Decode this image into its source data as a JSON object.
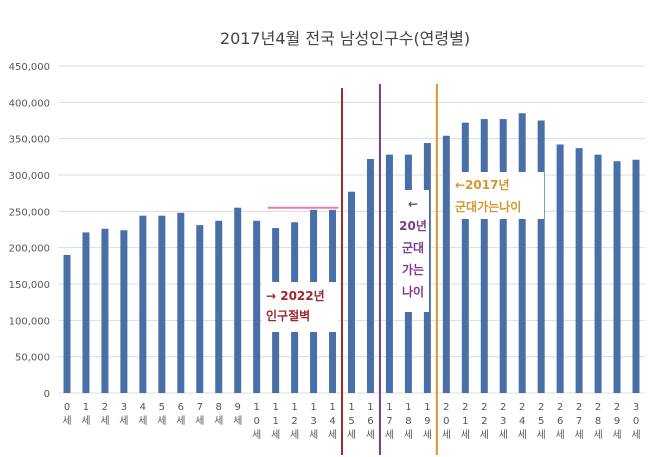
{
  "chart_data": {
    "type": "bar",
    "title": "2017년4월 전국 남성인구수(연령별)",
    "xlabel": "",
    "ylabel": "",
    "ylim": [
      0,
      450000
    ],
    "yticks": [
      "0",
      "50,000",
      "100,000",
      "150,000",
      "200,000",
      "250,000",
      "300,000",
      "350,000",
      "400,000",
      "450,000"
    ],
    "grid": true,
    "categories": [
      "0세",
      "1세",
      "2세",
      "3세",
      "4세",
      "5세",
      "6세",
      "7세",
      "8세",
      "9세",
      "10세",
      "11세",
      "12세",
      "13세",
      "14세",
      "15세",
      "16세",
      "17세",
      "18세",
      "19세",
      "20세",
      "21세",
      "22세",
      "23세",
      "24세",
      "25세",
      "26세",
      "27세",
      "28세",
      "29세",
      "30세"
    ],
    "values": [
      190000,
      221000,
      226000,
      224000,
      244000,
      244000,
      248000,
      231000,
      237000,
      255000,
      237000,
      227000,
      235000,
      252000,
      252000,
      277000,
      322000,
      328000,
      328000,
      344000,
      354000,
      372000,
      377000,
      377000,
      385000,
      375000,
      342000,
      337000,
      328000,
      319000,
      321000
    ],
    "bar_color": "#4a6fa8",
    "annotations": [
      {
        "lines": [
          "→ 2022년",
          "인구절벽"
        ],
        "color": "#a0282f",
        "marker_between": [
          14,
          15
        ]
      },
      {
        "lines": [
          "←",
          "20년",
          "군대",
          "가는",
          "나이"
        ],
        "color": "#7a3c8c",
        "marker_between": [
          16,
          17
        ]
      },
      {
        "lines": [
          "←2017년",
          "군대가는나이"
        ],
        "color": "#d4962e",
        "marker_between": [
          19,
          20
        ]
      }
    ],
    "reference_line": {
      "value": 255000,
      "color": "#e87fb0",
      "from_category": "11세",
      "to_category": "14세"
    }
  }
}
